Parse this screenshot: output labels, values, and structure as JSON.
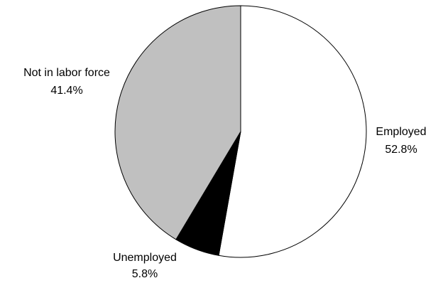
{
  "chart_data": {
    "type": "pie",
    "start_angle_deg": 0,
    "direction": "clockwise",
    "slices": [
      {
        "label": "Employed",
        "value": 52.8,
        "value_label": "52.8%",
        "color": "#ffffff"
      },
      {
        "label": "Unemployed",
        "value": 5.8,
        "value_label": "5.8%",
        "color": "#000000"
      },
      {
        "label": "Not in labor force",
        "value": 41.4,
        "value_label": "41.4%",
        "color": "#c0c0c0"
      }
    ],
    "outline_color": "#000000",
    "legend": "none"
  }
}
